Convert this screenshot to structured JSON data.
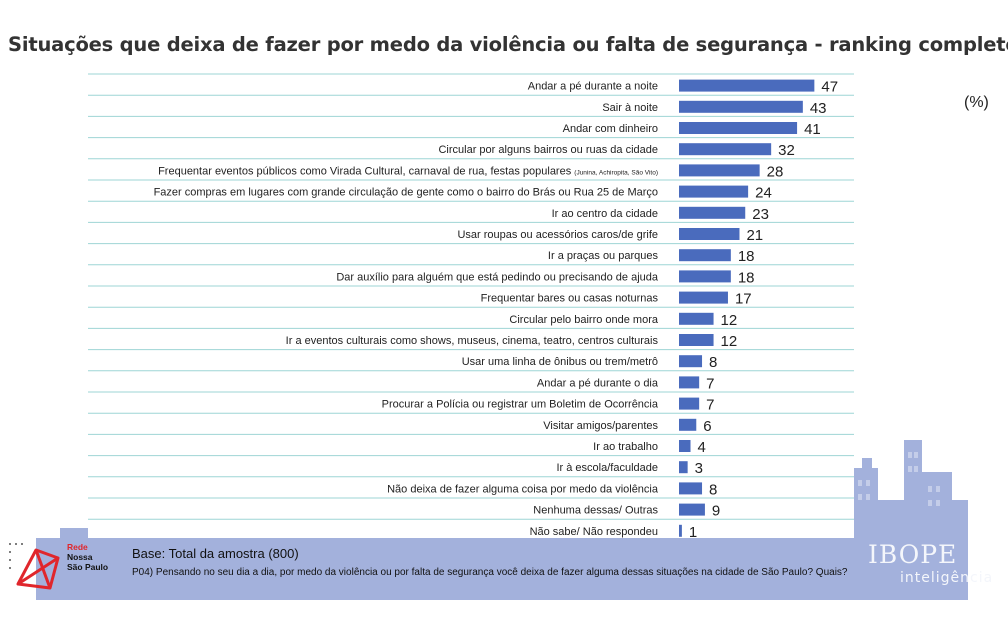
{
  "title": "Situações que deixa de fazer por medo da violência ou falta de segurança - ranking completo",
  "unit_label": "(%)",
  "footer": {
    "base": "Base: Total da amostra (800)",
    "question": "P04) Pensando no seu dia a dia, por medo da violência ou por falta de segurança você deixa de fazer alguma dessas situações na cidade de São Paulo? Quais?"
  },
  "logos": {
    "rede_line1": "Rede",
    "rede_line2": "Nossa",
    "rede_line3": "São Paulo",
    "ibope": "IBOPE",
    "ibope_sub": "inteligência"
  },
  "colors": {
    "bar": "#4a6bbd",
    "gridline": "#9ed5d5",
    "city": "#a3b1dc"
  },
  "chart_data": {
    "type": "bar",
    "orientation": "horizontal",
    "title": "Situações que deixa de fazer por medo da violência ou falta de segurança - ranking completo",
    "xlabel": "",
    "ylabel": "",
    "xlim": [
      0,
      50
    ],
    "grid": true,
    "categories": [
      "Andar a pé durante a noite",
      "Sair à noite",
      "Andar com dinheiro",
      "Circular por alguns bairros ou ruas da cidade",
      "Frequentar eventos públicos como Virada Cultural, carnaval de rua, festas populares",
      "Fazer compras em lugares com grande circulação de gente como o bairro do Brás ou Rua 25 de Março",
      "Ir ao centro da cidade",
      "Usar roupas ou acessórios caros/de grife",
      "Ir a praças ou parques",
      "Dar auxílio para alguém que está pedindo ou precisando de ajuda",
      "Frequentar bares ou casas noturnas",
      "Circular pelo bairro onde mora",
      "Ir a eventos culturais como shows, museus, cinema, teatro, centros culturais",
      "Usar uma linha de ônibus ou trem/metrô",
      "Andar a pé durante o dia",
      "Procurar a Polícia ou registrar um Boletim de Ocorrência",
      "Visitar amigos/parentes",
      "Ir ao trabalho",
      "Ir à escola/faculdade",
      "Não deixa de fazer alguma coisa por medo da violência",
      "Nenhuma dessas/ Outras",
      "Não sabe/ Não respondeu"
    ],
    "category_notes": [
      "",
      "",
      "",
      "",
      "(Junina, Achiropita, São Vito)",
      "",
      "",
      "",
      "",
      "",
      "",
      "",
      "",
      "",
      "",
      "",
      "",
      "",
      "",
      "",
      "",
      ""
    ],
    "values": [
      47,
      43,
      41,
      32,
      28,
      24,
      23,
      21,
      18,
      18,
      17,
      12,
      12,
      8,
      7,
      7,
      6,
      4,
      3,
      8,
      9,
      1
    ]
  }
}
